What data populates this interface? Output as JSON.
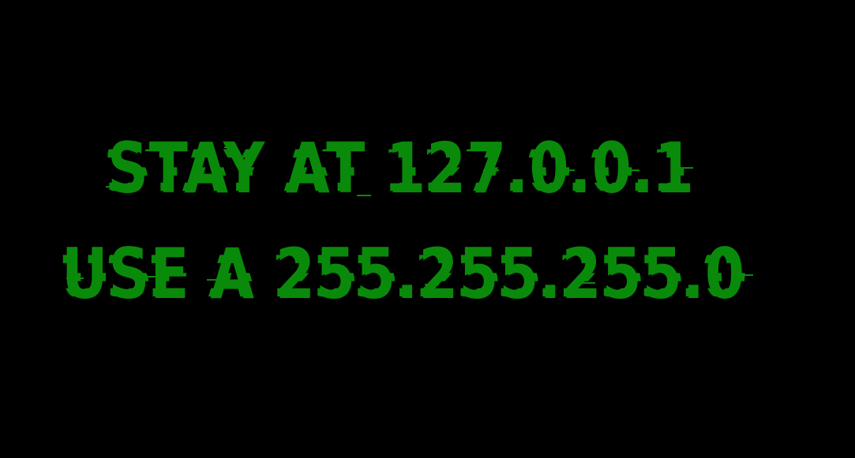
{
  "lines": [
    "STAY AT 127.0.0.1",
    "USE A 255.255.255.0"
  ],
  "colors": {
    "background": "#000000",
    "text": "#0a8a0a"
  }
}
